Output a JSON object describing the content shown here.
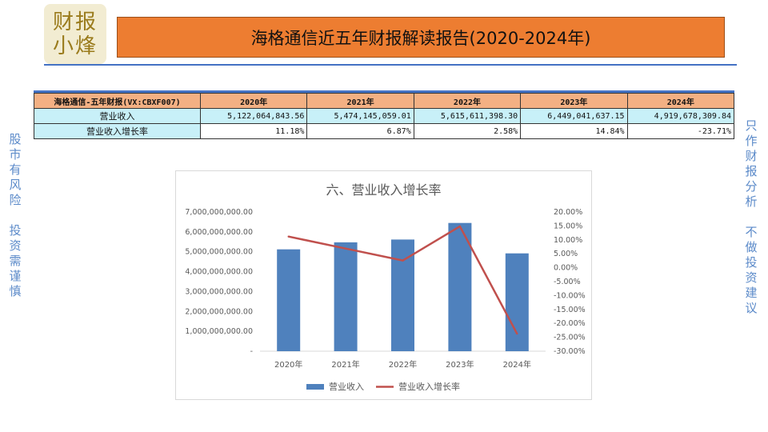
{
  "logo": {
    "text": "财报小烽"
  },
  "header": {
    "title": "海格通信近五年财报解读报告(2020-2024年)"
  },
  "side_left": [
    "股市有风险",
    "投资需谨慎"
  ],
  "side_right": [
    "只作财报分析",
    "不做投资建议"
  ],
  "table": {
    "header": [
      "海格通信-五年财报(VX:CBXF007)",
      "2020年",
      "2021年",
      "2022年",
      "2023年",
      "2024年"
    ],
    "rows": [
      {
        "label": "营业收入",
        "values": [
          "5,122,064,843.56",
          "5,474,145,059.01",
          "5,615,611,398.30",
          "6,449,041,637.15",
          "4,919,678,309.84"
        ]
      },
      {
        "label": "营业收入增长率",
        "values": [
          "11.18%",
          "6.87%",
          "2.58%",
          "14.84%",
          "-23.71%"
        ]
      }
    ]
  },
  "colors": {
    "bar": "#4f81bd",
    "line": "#c0504d",
    "title_bg": "#ed7d31",
    "header_bg": "#f3b083",
    "row_bg": "#c8f0f8"
  },
  "chart_data": {
    "type": "bar",
    "title": "六、营业收入增长率",
    "categories": [
      "2020年",
      "2021年",
      "2022年",
      "2023年",
      "2024年"
    ],
    "series": [
      {
        "name": "营业收入",
        "type": "bar",
        "axis": "left",
        "values": [
          5122064843.56,
          5474145059.01,
          5615611398.3,
          6449041637.15,
          4919678309.84
        ]
      },
      {
        "name": "营业收入增长率",
        "type": "line",
        "axis": "right",
        "values": [
          11.18,
          6.87,
          2.58,
          14.84,
          -23.71
        ]
      }
    ],
    "y_left": {
      "range": [
        0,
        7000000000
      ],
      "ticks": [
        "-",
        "1,000,000,000.00",
        "2,000,000,000.00",
        "3,000,000,000.00",
        "4,000,000,000.00",
        "5,000,000,000.00",
        "6,000,000,000.00",
        "7,000,000,000.00"
      ]
    },
    "y_right": {
      "range": [
        -30,
        20
      ],
      "ticks": [
        "-30.00%",
        "-25.00%",
        "-20.00%",
        "-15.00%",
        "-10.00%",
        "-5.00%",
        "0.00%",
        "5.00%",
        "10.00%",
        "15.00%",
        "20.00%"
      ]
    },
    "grid": false,
    "legend": "bottom"
  }
}
